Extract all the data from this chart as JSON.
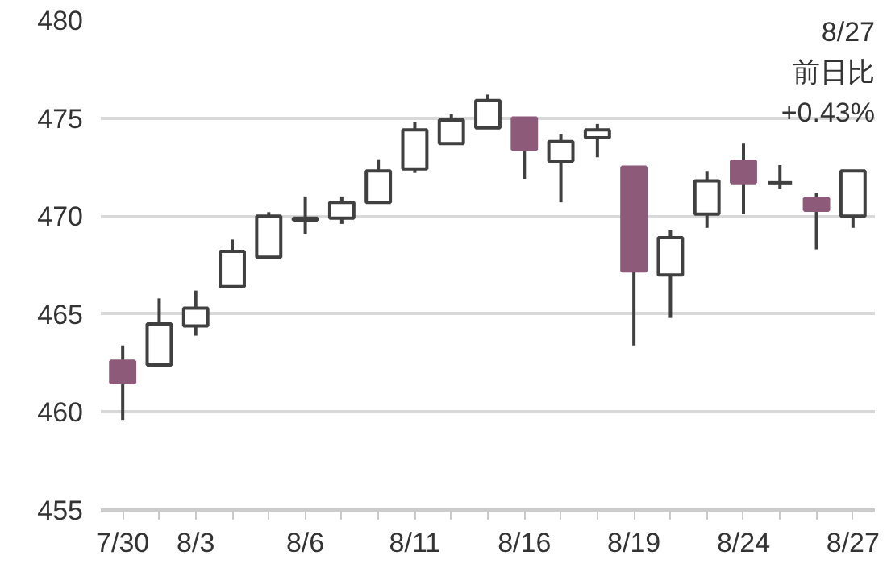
{
  "chart_data": {
    "type": "candlestick",
    "categories": [
      "7/30",
      null,
      "8/3",
      null,
      null,
      "8/6",
      null,
      null,
      "8/11",
      null,
      null,
      "8/16",
      null,
      null,
      "8/19",
      null,
      null,
      "8/24",
      null,
      null,
      "8/27"
    ],
    "ohlc": [
      [
        462.6,
        463.4,
        459.6,
        461.5
      ],
      [
        462.4,
        465.8,
        462.4,
        464.5
      ],
      [
        464.4,
        466.2,
        463.9,
        465.3
      ],
      [
        466.4,
        468.8,
        466.4,
        468.2
      ],
      [
        467.9,
        470.2,
        467.9,
        470.0
      ],
      [
        469.8,
        471.0,
        469.1,
        469.9
      ],
      [
        469.9,
        471.0,
        469.6,
        470.7
      ],
      [
        470.7,
        472.9,
        470.7,
        472.3
      ],
      [
        472.4,
        474.8,
        472.2,
        474.4
      ],
      [
        473.7,
        475.2,
        473.7,
        474.9
      ],
      [
        474.5,
        476.2,
        474.5,
        475.9
      ],
      [
        475.0,
        475.0,
        471.9,
        473.4
      ],
      [
        472.8,
        474.2,
        470.7,
        473.8
      ],
      [
        474.0,
        474.7,
        473.0,
        474.4
      ],
      [
        472.5,
        472.5,
        463.4,
        467.2
      ],
      [
        467.0,
        469.3,
        464.8,
        468.9
      ],
      [
        470.1,
        472.3,
        469.4,
        471.8
      ],
      [
        472.8,
        473.7,
        470.1,
        471.7
      ],
      [
        471.7,
        472.6,
        471.4,
        471.7
      ],
      [
        470.9,
        471.2,
        468.3,
        470.3
      ],
      [
        470.0,
        472.3,
        469.4,
        472.3
      ]
    ],
    "colors": [
      "#8e5a7a",
      "#ffffff",
      "#ffffff",
      "#ffffff",
      "#ffffff",
      "#ffffff",
      "#ffffff",
      "#ffffff",
      "#ffffff",
      "#ffffff",
      "#ffffff",
      "#8e5a7a",
      "#ffffff",
      "#ffffff",
      "#8e5a7a",
      "#ffffff",
      "#ffffff",
      "#8e5a7a",
      "#404040",
      "#8e5a7a",
      "#ffffff"
    ],
    "ylim": [
      455,
      480
    ],
    "yticks": [
      455,
      460,
      465,
      470,
      475,
      480
    ],
    "grid": "y",
    "annotations": [
      "8/27\n前日比\n+0.43%"
    ]
  }
}
